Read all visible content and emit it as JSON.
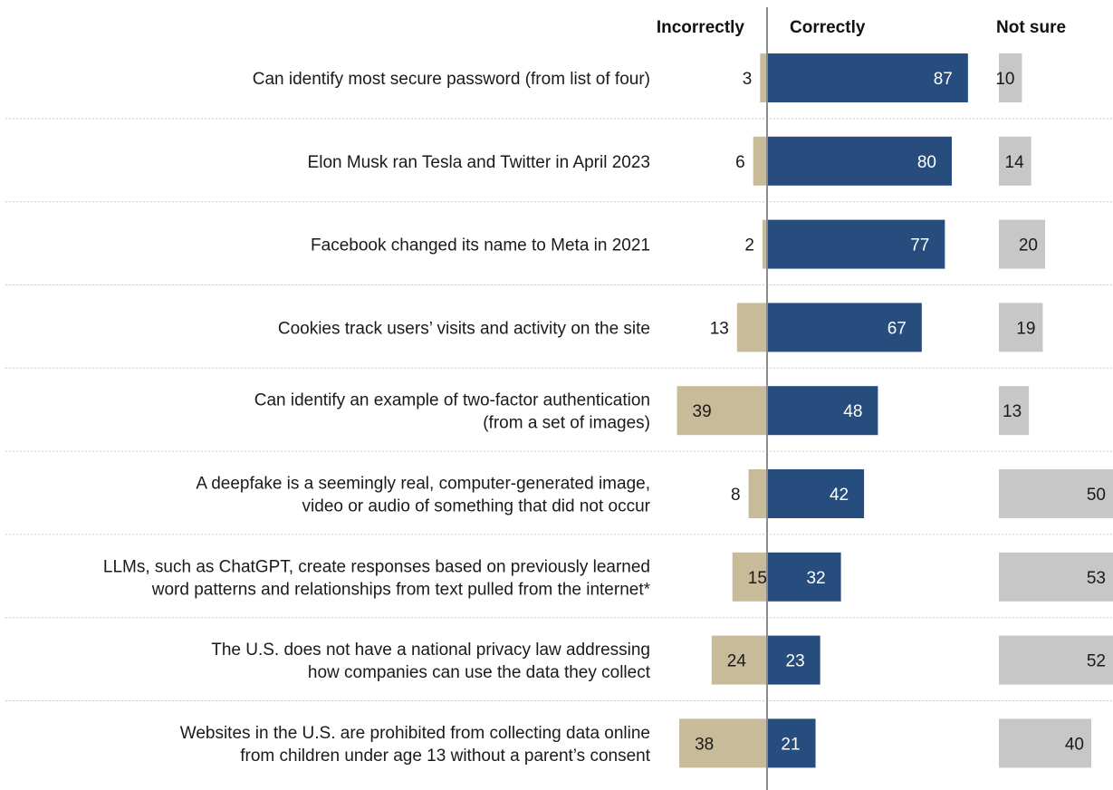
{
  "chart_data": {
    "type": "bar",
    "title": "",
    "xlabel": "",
    "ylabel": "",
    "grid": false,
    "legend": "column headers at top",
    "columns": [
      "Incorrectly",
      "Correctly",
      "Not sure"
    ],
    "categories": [
      [
        "Can identify most secure password (from list of four)"
      ],
      [
        "Elon Musk ran Tesla and Twitter in April 2023"
      ],
      [
        "Facebook changed its name to Meta in 2021"
      ],
      [
        "Cookies track users’ visits and activity on the site"
      ],
      [
        "Can identify an example of two-factor authentication",
        "(from a set of images)"
      ],
      [
        "A deepfake is a seemingly real, computer-generated image,",
        "video or audio of something that did not occur"
      ],
      [
        "LLMs, such as ChatGPT, create responses based on previously learned",
        "word patterns and relationships from text pulled from the internet*"
      ],
      [
        "The U.S. does not have a national privacy law addressing",
        "how companies can use the data they collect"
      ],
      [
        "Websites in the U.S. are prohibited from collecting data online",
        "from children under age 13 without a parent’s consent"
      ]
    ],
    "series": [
      {
        "name": "Incorrectly",
        "color": "#c8bb9a",
        "values": [
          3,
          6,
          2,
          13,
          39,
          8,
          15,
          24,
          38
        ]
      },
      {
        "name": "Correctly",
        "color": "#264d7e",
        "values": [
          87,
          80,
          77,
          67,
          48,
          42,
          32,
          23,
          21
        ]
      },
      {
        "name": "Not sure",
        "color": "#c7c7c7",
        "values": [
          10,
          14,
          20,
          19,
          13,
          50,
          53,
          52,
          40
        ]
      }
    ]
  }
}
